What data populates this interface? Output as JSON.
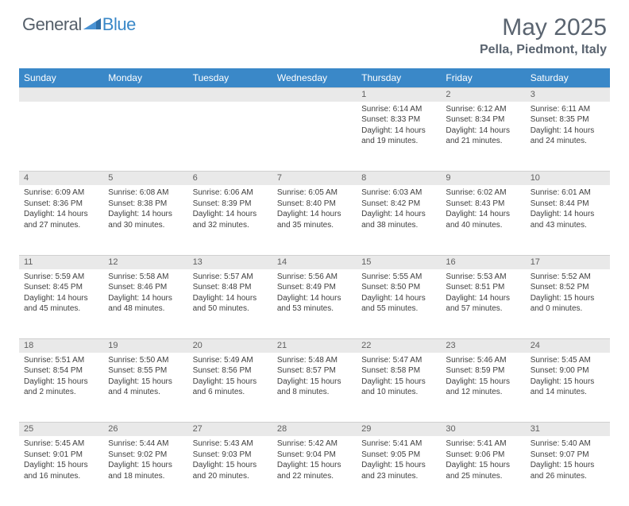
{
  "logo": {
    "text1": "General",
    "text2": "Blue"
  },
  "title": "May 2025",
  "location": "Pella, Piedmont, Italy",
  "colors": {
    "header_bg": "#3a88c8",
    "header_text": "#ffffff",
    "daynum_bg": "#e9e9e9",
    "title_color": "#5a6470",
    "body_text": "#404040"
  },
  "day_headers": [
    "Sunday",
    "Monday",
    "Tuesday",
    "Wednesday",
    "Thursday",
    "Friday",
    "Saturday"
  ],
  "weeks": [
    [
      null,
      null,
      null,
      null,
      {
        "n": "1",
        "sr": "6:14 AM",
        "ss": "8:33 PM",
        "dl": "14 hours and 19 minutes."
      },
      {
        "n": "2",
        "sr": "6:12 AM",
        "ss": "8:34 PM",
        "dl": "14 hours and 21 minutes."
      },
      {
        "n": "3",
        "sr": "6:11 AM",
        "ss": "8:35 PM",
        "dl": "14 hours and 24 minutes."
      }
    ],
    [
      {
        "n": "4",
        "sr": "6:09 AM",
        "ss": "8:36 PM",
        "dl": "14 hours and 27 minutes."
      },
      {
        "n": "5",
        "sr": "6:08 AM",
        "ss": "8:38 PM",
        "dl": "14 hours and 30 minutes."
      },
      {
        "n": "6",
        "sr": "6:06 AM",
        "ss": "8:39 PM",
        "dl": "14 hours and 32 minutes."
      },
      {
        "n": "7",
        "sr": "6:05 AM",
        "ss": "8:40 PM",
        "dl": "14 hours and 35 minutes."
      },
      {
        "n": "8",
        "sr": "6:03 AM",
        "ss": "8:42 PM",
        "dl": "14 hours and 38 minutes."
      },
      {
        "n": "9",
        "sr": "6:02 AM",
        "ss": "8:43 PM",
        "dl": "14 hours and 40 minutes."
      },
      {
        "n": "10",
        "sr": "6:01 AM",
        "ss": "8:44 PM",
        "dl": "14 hours and 43 minutes."
      }
    ],
    [
      {
        "n": "11",
        "sr": "5:59 AM",
        "ss": "8:45 PM",
        "dl": "14 hours and 45 minutes."
      },
      {
        "n": "12",
        "sr": "5:58 AM",
        "ss": "8:46 PM",
        "dl": "14 hours and 48 minutes."
      },
      {
        "n": "13",
        "sr": "5:57 AM",
        "ss": "8:48 PM",
        "dl": "14 hours and 50 minutes."
      },
      {
        "n": "14",
        "sr": "5:56 AM",
        "ss": "8:49 PM",
        "dl": "14 hours and 53 minutes."
      },
      {
        "n": "15",
        "sr": "5:55 AM",
        "ss": "8:50 PM",
        "dl": "14 hours and 55 minutes."
      },
      {
        "n": "16",
        "sr": "5:53 AM",
        "ss": "8:51 PM",
        "dl": "14 hours and 57 minutes."
      },
      {
        "n": "17",
        "sr": "5:52 AM",
        "ss": "8:52 PM",
        "dl": "15 hours and 0 minutes."
      }
    ],
    [
      {
        "n": "18",
        "sr": "5:51 AM",
        "ss": "8:54 PM",
        "dl": "15 hours and 2 minutes."
      },
      {
        "n": "19",
        "sr": "5:50 AM",
        "ss": "8:55 PM",
        "dl": "15 hours and 4 minutes."
      },
      {
        "n": "20",
        "sr": "5:49 AM",
        "ss": "8:56 PM",
        "dl": "15 hours and 6 minutes."
      },
      {
        "n": "21",
        "sr": "5:48 AM",
        "ss": "8:57 PM",
        "dl": "15 hours and 8 minutes."
      },
      {
        "n": "22",
        "sr": "5:47 AM",
        "ss": "8:58 PM",
        "dl": "15 hours and 10 minutes."
      },
      {
        "n": "23",
        "sr": "5:46 AM",
        "ss": "8:59 PM",
        "dl": "15 hours and 12 minutes."
      },
      {
        "n": "24",
        "sr": "5:45 AM",
        "ss": "9:00 PM",
        "dl": "15 hours and 14 minutes."
      }
    ],
    [
      {
        "n": "25",
        "sr": "5:45 AM",
        "ss": "9:01 PM",
        "dl": "15 hours and 16 minutes."
      },
      {
        "n": "26",
        "sr": "5:44 AM",
        "ss": "9:02 PM",
        "dl": "15 hours and 18 minutes."
      },
      {
        "n": "27",
        "sr": "5:43 AM",
        "ss": "9:03 PM",
        "dl": "15 hours and 20 minutes."
      },
      {
        "n": "28",
        "sr": "5:42 AM",
        "ss": "9:04 PM",
        "dl": "15 hours and 22 minutes."
      },
      {
        "n": "29",
        "sr": "5:41 AM",
        "ss": "9:05 PM",
        "dl": "15 hours and 23 minutes."
      },
      {
        "n": "30",
        "sr": "5:41 AM",
        "ss": "9:06 PM",
        "dl": "15 hours and 25 minutes."
      },
      {
        "n": "31",
        "sr": "5:40 AM",
        "ss": "9:07 PM",
        "dl": "15 hours and 26 minutes."
      }
    ]
  ],
  "labels": {
    "sunrise": "Sunrise:",
    "sunset": "Sunset:",
    "daylight": "Daylight:"
  }
}
